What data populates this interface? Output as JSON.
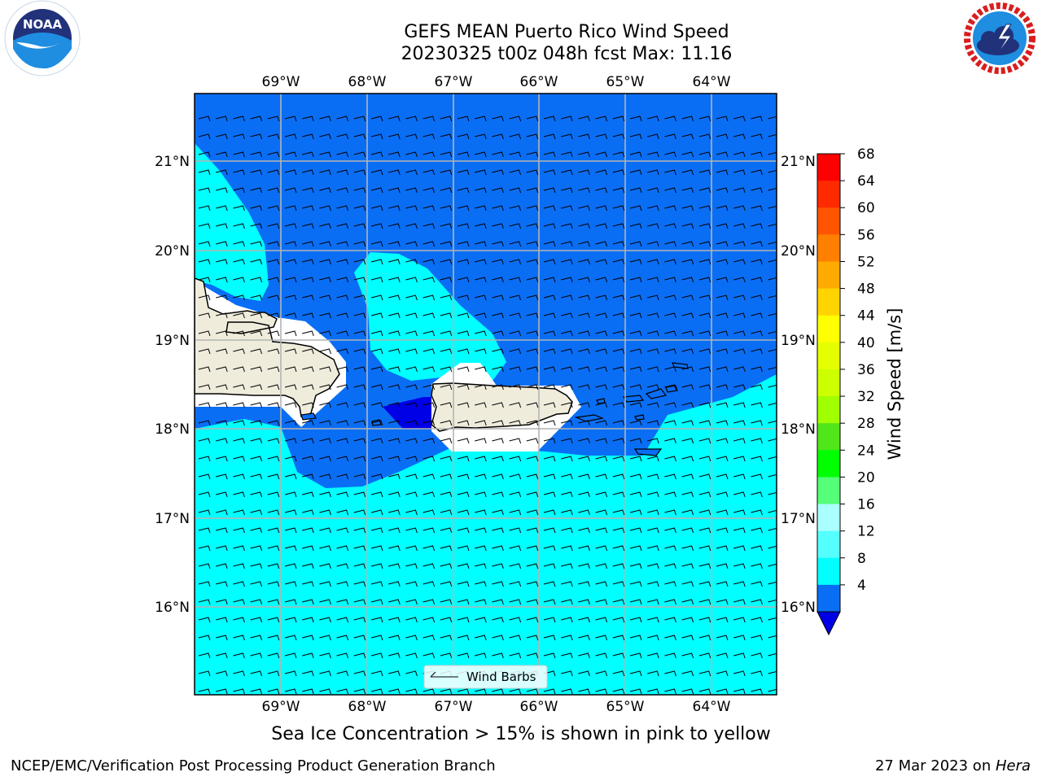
{
  "header": {
    "title_line1": "GEFS MEAN Puerto Rico Wind Speed",
    "title_line2": "20230325 t00z 048h fcst   Max: 11.16"
  },
  "logos": {
    "left": {
      "text": "NOAA",
      "ring_text": "NATIONAL OCEANIC AND ATMOSPHERIC ADMINISTRATION · U.S. DEPARTMENT OF COMMERCE"
    },
    "right": {
      "ring_text": "NATIONAL WEATHER SERVICE"
    }
  },
  "map": {
    "lon_labels": [
      "69°W",
      "68°W",
      "67°W",
      "66°W",
      "65°W",
      "64°W"
    ],
    "lat_labels": [
      "21°N",
      "20°N",
      "19°N",
      "18°N",
      "17°N",
      "16°N"
    ],
    "legend_label": "Wind Barbs",
    "colors": {
      "ocean_low": "#0a6ef5",
      "ocean_mid": "#00ffff",
      "ocean_min": "#0000e6",
      "land": "#efecdc"
    }
  },
  "colorbar": {
    "label": "Wind Speed [m/s]",
    "ticks": [
      "68",
      "64",
      "60",
      "56",
      "52",
      "48",
      "44",
      "40",
      "36",
      "32",
      "28",
      "24",
      "20",
      "16",
      "12",
      "8",
      "4"
    ],
    "colors": [
      "#ff0000",
      "#ff2a00",
      "#ff5500",
      "#ff8000",
      "#ffaa00",
      "#ffd400",
      "#ffff00",
      "#e6ff00",
      "#ccff00",
      "#a0ff00",
      "#50e619",
      "#00ff00",
      "#55ff77",
      "#aaffff",
      "#55ffff",
      "#00ffff",
      "#0a6ef5"
    ],
    "under_color": "#0000e6"
  },
  "caption": "Sea Ice Concentration > 15% is shown in pink to yellow",
  "footer": {
    "left": "NCEP/EMC/Verification Post Processing Product Generation Branch",
    "right_prefix": "27 Mar 2023 on ",
    "right_host": "Hera"
  }
}
